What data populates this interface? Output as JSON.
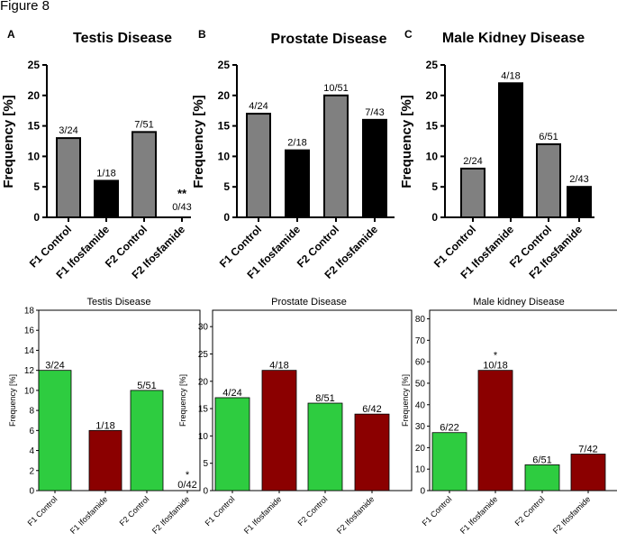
{
  "figure_title": "Figure 8",
  "chart_data": [
    {
      "type": "bar",
      "panel_letter": "A",
      "title": "Testis Disease",
      "ylabel": "Frequency [%]",
      "ylim": [
        0,
        25
      ],
      "yticks": [
        0,
        5,
        10,
        15,
        20,
        25
      ],
      "categories": [
        "F1 Control",
        "F1 Ifosfamide",
        "F2 Control",
        "F2 Ifosfamide"
      ],
      "values": [
        13,
        6,
        14,
        0
      ],
      "labels": [
        "3/24",
        "1/18",
        "7/51",
        "0/43"
      ],
      "significance": [
        "",
        "",
        "",
        "**"
      ],
      "colors": [
        "#808080",
        "#000000",
        "#808080",
        "#000000"
      ]
    },
    {
      "type": "bar",
      "panel_letter": "B",
      "title": "Prostate Disease",
      "ylabel": "Frequency [%]",
      "ylim": [
        0,
        25
      ],
      "yticks": [
        0,
        5,
        10,
        15,
        20,
        25
      ],
      "categories": [
        "F1 Control",
        "F1 Ifosfamide",
        "F2 Control",
        "F2 Ifosfamide"
      ],
      "values": [
        17,
        11,
        20,
        16
      ],
      "labels": [
        "4/24",
        "2/18",
        "10/51",
        "7/43"
      ],
      "significance": [
        "",
        "",
        "",
        ""
      ],
      "colors": [
        "#808080",
        "#000000",
        "#808080",
        "#000000"
      ]
    },
    {
      "type": "bar",
      "panel_letter": "C",
      "title": "Male Kidney Disease",
      "ylabel": "Frequency [%]",
      "ylim": [
        0,
        25
      ],
      "yticks": [
        0,
        5,
        10,
        15,
        20,
        25
      ],
      "categories": [
        "F1 Control",
        "F1 Ifosfamide",
        "F2 Control",
        "F2 Ifosfamide"
      ],
      "values": [
        8,
        22,
        12,
        5
      ],
      "labels": [
        "2/24",
        "4/18",
        "6/51",
        "2/43"
      ],
      "significance": [
        "",
        "",
        "",
        ""
      ],
      "colors": [
        "#808080",
        "#000000",
        "#808080",
        "#000000"
      ]
    },
    {
      "type": "bar",
      "title": "Testis Disease",
      "ylabel": "Frequency [%]",
      "ylim": [
        0,
        18
      ],
      "yticks": [
        0,
        2,
        4,
        6,
        8,
        10,
        12,
        14,
        16,
        18
      ],
      "categories": [
        "F1 Control",
        "F1 Ifosfamide",
        "F2 Control",
        "F2 Ifosfamide"
      ],
      "values": [
        12,
        6,
        10,
        0
      ],
      "labels": [
        "3/24",
        "1/18",
        "5/51",
        "0/42"
      ],
      "significance": [
        "",
        "",
        "",
        "*"
      ],
      "colors": [
        "#2ecc40",
        "#8b0000",
        "#2ecc40",
        "#8b0000"
      ]
    },
    {
      "type": "bar",
      "title": "Prostate Disease",
      "ylabel": "Frequency [%]",
      "ylim": [
        0,
        33
      ],
      "yticks": [
        0,
        5,
        10,
        15,
        20,
        25,
        30
      ],
      "categories": [
        "F1 Control",
        "F1 Ifosfamide",
        "F2 Control",
        "F2 Ifosfamide"
      ],
      "values": [
        17,
        22,
        16,
        14
      ],
      "labels": [
        "4/24",
        "4/18",
        "8/51",
        "6/42"
      ],
      "significance": [
        "",
        "",
        "",
        ""
      ],
      "colors": [
        "#2ecc40",
        "#8b0000",
        "#2ecc40",
        "#8b0000"
      ]
    },
    {
      "type": "bar",
      "title": "Male kidney Disease",
      "ylabel": "Frequency [%]",
      "ylim": [
        0,
        84
      ],
      "yticks": [
        0,
        10,
        20,
        30,
        40,
        50,
        60,
        70,
        80
      ],
      "categories": [
        "F1 Control",
        "F1 Ifosfamide",
        "F2 Control",
        "F2 Ifosfamide"
      ],
      "values": [
        27,
        56,
        12,
        17
      ],
      "labels": [
        "6/22",
        "10/18",
        "6/51",
        "7/42"
      ],
      "significance": [
        "",
        "*",
        "",
        ""
      ],
      "colors": [
        "#2ecc40",
        "#8b0000",
        "#2ecc40",
        "#8b0000"
      ]
    }
  ]
}
